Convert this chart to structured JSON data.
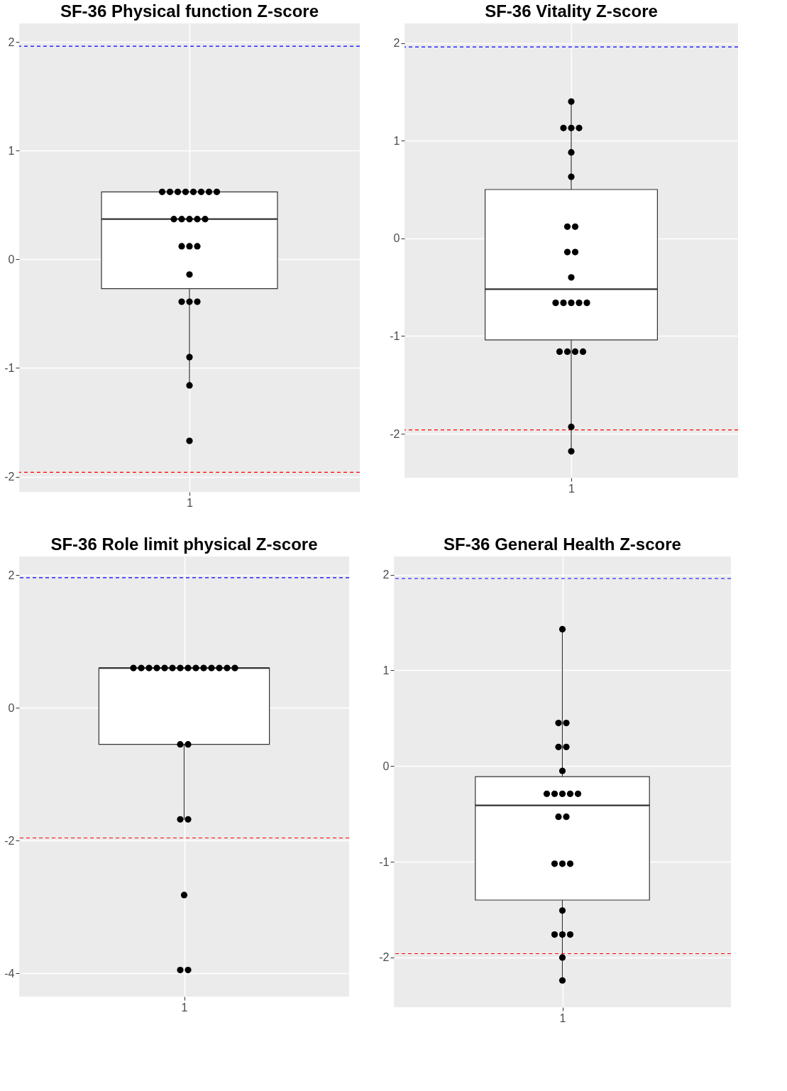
{
  "chart_data": [
    {
      "type": "box",
      "title": "SF-36 Physical function Z-score",
      "categories": [
        "1"
      ],
      "ylim": [
        -2.14,
        2.17
      ],
      "yticks": [
        -2,
        -1,
        0,
        1,
        2
      ],
      "grid": true,
      "boxes": [
        {
          "low": -1.16,
          "q1": -0.27,
          "median": 0.37,
          "q3": 0.62,
          "high": 0.62
        }
      ],
      "series": [
        {
          "type": "scatter",
          "color": "#000000",
          "x": [
            "1",
            "1",
            "1",
            "1",
            "1",
            "1",
            "1",
            "1",
            "1",
            "1",
            "1",
            "1",
            "1",
            "1",
            "1",
            "1",
            "1",
            "1",
            "1",
            "1",
            "1",
            "1",
            "1"
          ],
          "values": [
            0.62,
            0.62,
            0.62,
            0.62,
            0.62,
            0.62,
            0.62,
            0.62,
            0.37,
            0.37,
            0.37,
            0.37,
            0.37,
            0.12,
            0.12,
            0.12,
            -0.14,
            -0.39,
            -0.39,
            -0.39,
            -0.9,
            -1.16,
            -1.67
          ]
        }
      ],
      "ref_lines": [
        {
          "axis": "y",
          "value": 1.96,
          "color": "#0000ff",
          "line_style": "dashed"
        },
        {
          "axis": "y",
          "value": -1.96,
          "color": "#ff0000",
          "line_style": "dashed"
        }
      ]
    },
    {
      "type": "box",
      "title": "SF-36 Vitality Z-score",
      "categories": [
        "1"
      ],
      "ylim": [
        -2.45,
        2.2
      ],
      "yticks": [
        -2,
        -1,
        0,
        1,
        2
      ],
      "grid": true,
      "boxes": [
        {
          "low": -2.18,
          "q1": -1.04,
          "median": -0.52,
          "q3": 0.5,
          "high": 1.4
        }
      ],
      "series": [
        {
          "type": "scatter",
          "color": "#000000",
          "x": [
            "1",
            "1",
            "1",
            "1",
            "1",
            "1",
            "1",
            "1",
            "1",
            "1",
            "1",
            "1",
            "1",
            "1",
            "1",
            "1",
            "1",
            "1",
            "1",
            "1",
            "1",
            "1"
          ],
          "values": [
            1.4,
            1.13,
            1.13,
            1.13,
            0.88,
            0.63,
            0.12,
            0.12,
            -0.14,
            -0.14,
            -0.4,
            -0.66,
            -0.66,
            -0.66,
            -0.66,
            -0.66,
            -1.16,
            -1.16,
            -1.16,
            -1.16,
            -1.93,
            -2.18
          ]
        }
      ],
      "ref_lines": [
        {
          "axis": "y",
          "value": 1.96,
          "color": "#0000ff",
          "line_style": "dashed"
        },
        {
          "axis": "y",
          "value": -1.96,
          "color": "#ff0000",
          "line_style": "dashed"
        }
      ]
    },
    {
      "type": "box",
      "title": "SF-36 Role limit physical Z-score",
      "categories": [
        "1"
      ],
      "ylim": [
        -4.35,
        2.28
      ],
      "yticks": [
        -4,
        -2,
        0,
        2
      ],
      "grid": true,
      "boxes": [
        {
          "low": -1.68,
          "q1": -0.55,
          "median": 0.6,
          "q3": 0.6,
          "high": 0.6
        }
      ],
      "series": [
        {
          "type": "scatter",
          "color": "#000000",
          "x": [
            "1",
            "1",
            "1",
            "1",
            "1",
            "1",
            "1",
            "1",
            "1",
            "1",
            "1",
            "1",
            "1",
            "1",
            "1",
            "1",
            "1",
            "1",
            "1",
            "1",
            "1"
          ],
          "values": [
            0.6,
            0.6,
            0.6,
            0.6,
            0.6,
            0.6,
            0.6,
            0.6,
            0.6,
            0.6,
            0.6,
            0.6,
            0.6,
            0.6,
            -0.55,
            -0.55,
            -1.68,
            -1.68,
            -2.82,
            -3.95,
            -3.95
          ]
        }
      ],
      "ref_lines": [
        {
          "axis": "y",
          "value": 1.96,
          "color": "#0000ff",
          "line_style": "dashed"
        },
        {
          "axis": "y",
          "value": -1.96,
          "color": "#ff0000",
          "line_style": "dashed"
        }
      ]
    },
    {
      "type": "box",
      "title": "SF-36 General Health Z-score",
      "categories": [
        "1"
      ],
      "ylim": [
        -2.52,
        2.19
      ],
      "yticks": [
        -2,
        -1,
        0,
        1,
        2
      ],
      "grid": true,
      "boxes": [
        {
          "low": -2.24,
          "q1": -1.4,
          "median": -0.41,
          "q3": -0.11,
          "high": 1.43
        }
      ],
      "series": [
        {
          "type": "scatter",
          "color": "#000000",
          "x": [
            "1",
            "1",
            "1",
            "1",
            "1",
            "1",
            "1",
            "1",
            "1",
            "1",
            "1",
            "1",
            "1",
            "1",
            "1",
            "1",
            "1",
            "1",
            "1",
            "1",
            "1",
            "1"
          ],
          "values": [
            1.43,
            0.45,
            0.45,
            0.2,
            0.2,
            -0.05,
            -0.29,
            -0.29,
            -0.29,
            -0.29,
            -0.29,
            -0.53,
            -0.53,
            -1.02,
            -1.02,
            -1.02,
            -1.51,
            -1.76,
            -1.76,
            -1.76,
            -2.0,
            -2.24
          ]
        }
      ],
      "ref_lines": [
        {
          "axis": "y",
          "value": 1.96,
          "color": "#0000ff",
          "line_style": "dashed"
        },
        {
          "axis": "y",
          "value": -1.96,
          "color": "#ff0000",
          "line_style": "dashed"
        }
      ]
    }
  ]
}
